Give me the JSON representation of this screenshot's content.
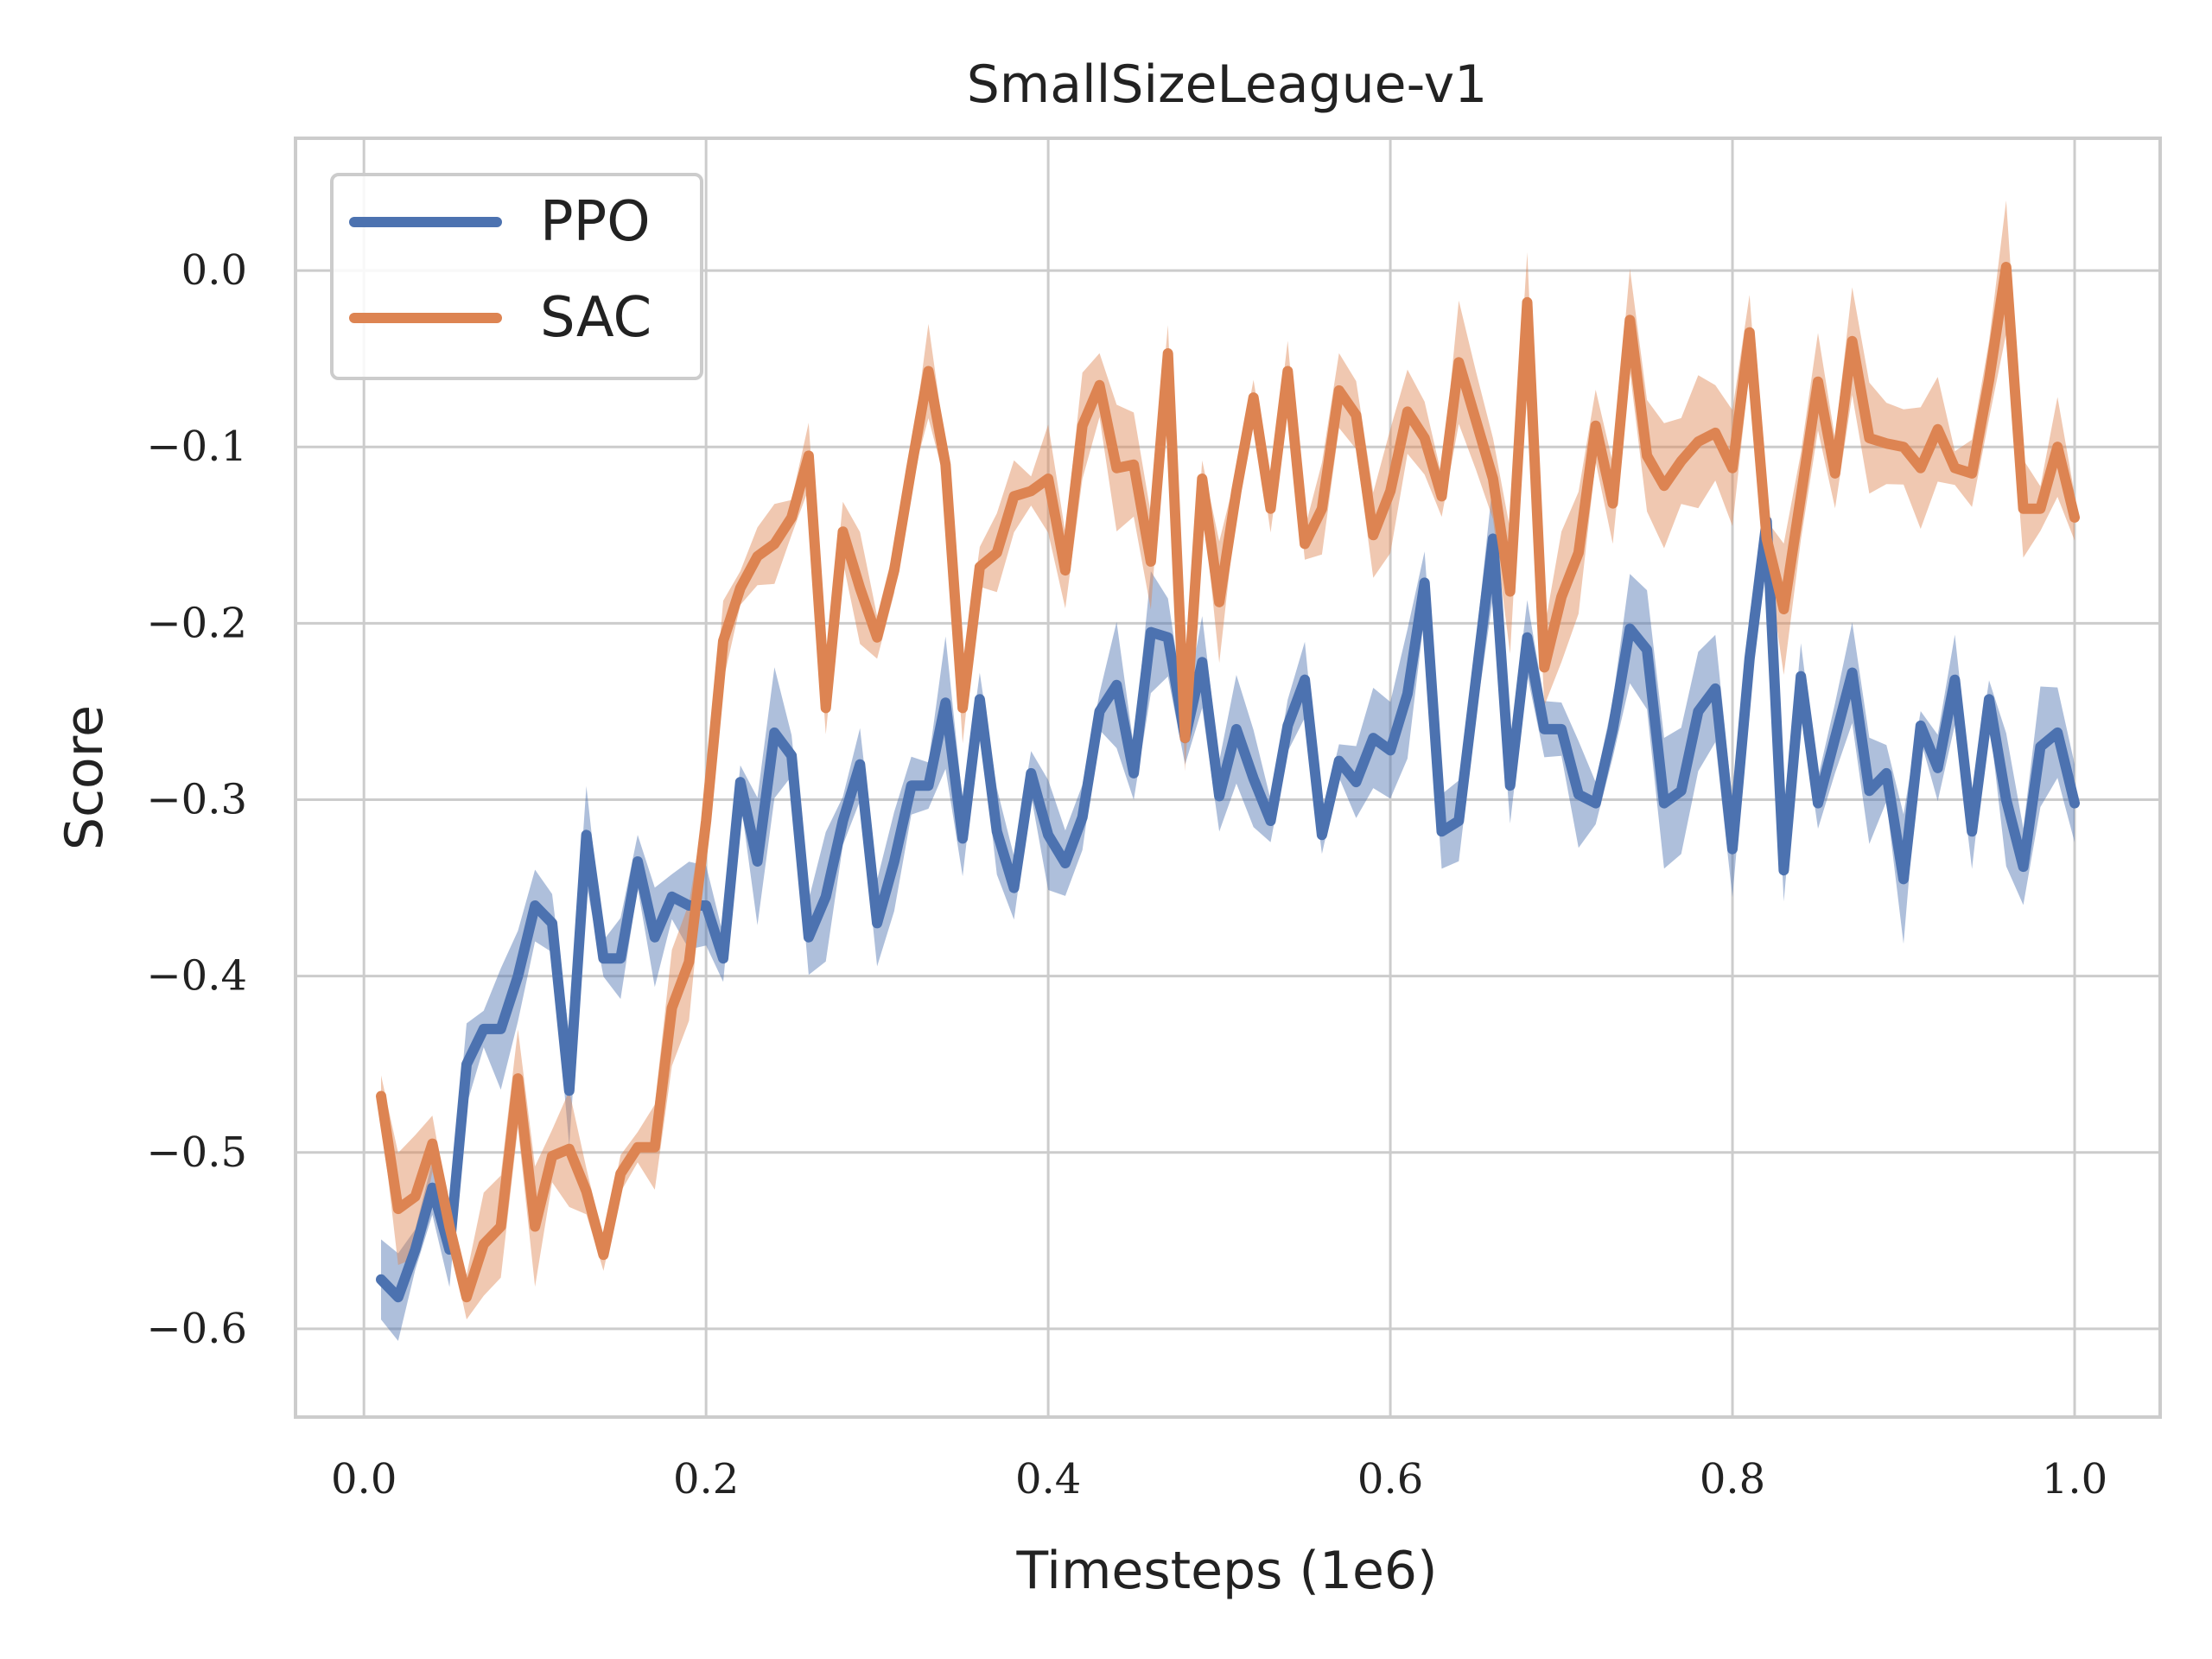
{
  "chart_data": {
    "type": "line",
    "title": "SmallSizeLeague-v1",
    "xlabel": "Timesteps (1e6)",
    "ylabel": "Score",
    "xlim": [
      -0.04,
      1.05
    ],
    "ylim": [
      -0.65,
      0.075
    ],
    "xticks": [
      0.0,
      0.2,
      0.4,
      0.6,
      0.8,
      1.0
    ],
    "xtick_labels": [
      "0.0",
      "0.2",
      "0.4",
      "0.6",
      "0.8",
      "1.0"
    ],
    "yticks": [
      0.0,
      -0.1,
      -0.2,
      -0.3,
      -0.4,
      -0.5,
      -0.6
    ],
    "ytick_labels": [
      "0.0",
      "−0.1",
      "−0.2",
      "−0.3",
      "−0.4",
      "−0.5",
      "−0.6"
    ],
    "grid": true,
    "legend_position": "top-left",
    "x": [
      0.01,
      0.02,
      0.03,
      0.04,
      0.05,
      0.06,
      0.07,
      0.08,
      0.09,
      0.1,
      0.11,
      0.12,
      0.13,
      0.14,
      0.15,
      0.16,
      0.17,
      0.18,
      0.19,
      0.2,
      0.21,
      0.22,
      0.23,
      0.24,
      0.25,
      0.26,
      0.27,
      0.28,
      0.29,
      0.3,
      0.31,
      0.32,
      0.33,
      0.34,
      0.35,
      0.36,
      0.37,
      0.38,
      0.39,
      0.4,
      0.41,
      0.42,
      0.43,
      0.44,
      0.45,
      0.46,
      0.47,
      0.48,
      0.49,
      0.5,
      0.51,
      0.52,
      0.53,
      0.54,
      0.55,
      0.56,
      0.57,
      0.58,
      0.59,
      0.6,
      0.61,
      0.62,
      0.63,
      0.64,
      0.65,
      0.66,
      0.67,
      0.68,
      0.69,
      0.7,
      0.71,
      0.72,
      0.73,
      0.74,
      0.75,
      0.76,
      0.77,
      0.78,
      0.79,
      0.8,
      0.81,
      0.82,
      0.83,
      0.84,
      0.85,
      0.86,
      0.87,
      0.88,
      0.89,
      0.9,
      0.91,
      0.92,
      0.93,
      0.94,
      0.95,
      0.96,
      0.97,
      0.98,
      0.99,
      1.0
    ],
    "series": [
      {
        "name": "PPO",
        "color": "#4c72b0",
        "values": [
          -0.572,
          -0.582,
          -0.555,
          -0.52,
          -0.555,
          -0.45,
          -0.43,
          -0.43,
          -0.4,
          -0.36,
          -0.37,
          -0.465,
          -0.32,
          -0.39,
          -0.39,
          -0.335,
          -0.378,
          -0.355,
          -0.36,
          -0.36,
          -0.39,
          -0.29,
          -0.335,
          -0.262,
          -0.275,
          -0.378,
          -0.355,
          -0.312,
          -0.28,
          -0.37,
          -0.335,
          -0.292,
          -0.292,
          -0.245,
          -0.322,
          -0.243,
          -0.318,
          -0.35,
          -0.285,
          -0.32,
          -0.336,
          -0.31,
          -0.25,
          -0.235,
          -0.285,
          -0.205,
          -0.208,
          -0.265,
          -0.222,
          -0.298,
          -0.26,
          -0.288,
          -0.312,
          -0.258,
          -0.232,
          -0.32,
          -0.278,
          -0.29,
          -0.265,
          -0.272,
          -0.24,
          -0.177,
          -0.318,
          -0.312,
          -0.232,
          -0.152,
          -0.292,
          -0.208,
          -0.26,
          -0.26,
          -0.297,
          -0.302,
          -0.26,
          -0.203,
          -0.215,
          -0.302,
          -0.295,
          -0.25,
          -0.237,
          -0.328,
          -0.22,
          -0.142,
          -0.34,
          -0.23,
          -0.302,
          -0.265,
          -0.228,
          -0.295,
          -0.285,
          -0.345,
          -0.258,
          -0.282,
          -0.232,
          -0.318,
          -0.243,
          -0.3,
          -0.338,
          -0.27,
          -0.262,
          -0.302
        ]
      },
      {
        "name": "SAC",
        "color": "#dd8452",
        "values": [
          -0.468,
          -0.532,
          -0.525,
          -0.495,
          -0.542,
          -0.582,
          -0.552,
          -0.542,
          -0.458,
          -0.542,
          -0.502,
          -0.498,
          -0.522,
          -0.558,
          -0.512,
          -0.497,
          -0.497,
          -0.418,
          -0.392,
          -0.312,
          -0.21,
          -0.18,
          -0.162,
          -0.155,
          -0.14,
          -0.105,
          -0.248,
          -0.148,
          -0.18,
          -0.208,
          -0.17,
          -0.112,
          -0.057,
          -0.11,
          -0.248,
          -0.168,
          -0.16,
          -0.128,
          -0.125,
          -0.118,
          -0.17,
          -0.088,
          -0.065,
          -0.112,
          -0.11,
          -0.165,
          -0.047,
          -0.265,
          -0.118,
          -0.188,
          -0.125,
          -0.072,
          -0.135,
          -0.057,
          -0.155,
          -0.135,
          -0.068,
          -0.082,
          -0.15,
          -0.125,
          -0.08,
          -0.095,
          -0.128,
          -0.052,
          -0.085,
          -0.118,
          -0.182,
          -0.018,
          -0.225,
          -0.185,
          -0.16,
          -0.088,
          -0.132,
          -0.028,
          -0.105,
          -0.122,
          -0.108,
          -0.097,
          -0.092,
          -0.112,
          -0.035,
          -0.152,
          -0.192,
          -0.128,
          -0.063,
          -0.115,
          -0.04,
          -0.095,
          -0.098,
          -0.1,
          -0.112,
          -0.09,
          -0.112,
          -0.115,
          -0.062,
          0.002,
          -0.135,
          -0.135,
          -0.1,
          -0.14
        ]
      }
    ]
  }
}
